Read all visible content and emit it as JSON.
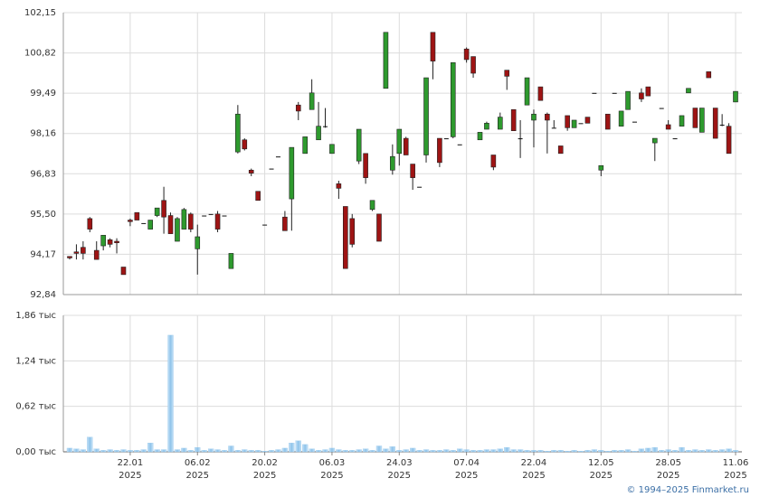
{
  "chart_data": {
    "type": "candlestick",
    "up_color": "#2e9a2e",
    "down_color": "#9e1414",
    "flat_color": "#111111",
    "grid": true,
    "categories": [
      null,
      null,
      null,
      null,
      null,
      null,
      null,
      null,
      null,
      "22.01\n2025",
      null,
      null,
      null,
      null,
      null,
      null,
      null,
      null,
      null,
      "06.02\n2025",
      null,
      null,
      null,
      null,
      null,
      null,
      null,
      null,
      null,
      "20.02\n2025",
      null,
      null,
      null,
      null,
      null,
      null,
      null,
      null,
      null,
      "06.03\n2025",
      null,
      null,
      null,
      null,
      null,
      null,
      null,
      null,
      null,
      "24.03\n2025",
      null,
      null,
      null,
      null,
      null,
      null,
      null,
      null,
      null,
      "07.04\n2025",
      null,
      null,
      null,
      null,
      null,
      null,
      null,
      null,
      null,
      "22.04\n2025",
      null,
      null,
      null,
      null,
      null,
      null,
      null,
      null,
      null,
      "12.05\n2025",
      null,
      null,
      null,
      null,
      null,
      null,
      null,
      null,
      null,
      "28.05\n2025",
      null,
      null,
      null,
      null,
      null,
      null,
      null,
      null,
      null,
      "11.06\n2025"
    ],
    "open": [
      94.1,
      94.25,
      94.4,
      95.35,
      94.3,
      94.45,
      94.65,
      94.6,
      93.75,
      95.3,
      95.55,
      95.2,
      95.0,
      95.45,
      95.95,
      95.45,
      94.6,
      95.0,
      95.5,
      94.35,
      95.45,
      95.5,
      95.5,
      95.45,
      93.7,
      97.55,
      97.95,
      96.95,
      96.25,
      95.15,
      97.0,
      97.4,
      95.4,
      96.0,
      99.1,
      97.5,
      98.95,
      97.95,
      98.4,
      97.5,
      96.5,
      95.75,
      95.35,
      97.25,
      97.5,
      95.65,
      95.5,
      99.65,
      96.95,
      97.5,
      98.0,
      97.15,
      96.4,
      97.45,
      101.5,
      98.0,
      98.0,
      98.05,
      97.8,
      100.95,
      100.7,
      97.95,
      98.3,
      97.45,
      98.3,
      100.25,
      98.95,
      98.0,
      99.1,
      98.6,
      99.7,
      98.8,
      98.35,
      97.75,
      98.75,
      98.35,
      98.5,
      98.7,
      99.5,
      96.95,
      98.8,
      99.5,
      98.4,
      98.95,
      98.55,
      99.5,
      99.7,
      97.85,
      99.0,
      98.45,
      98.0,
      98.4,
      99.5,
      99.0,
      98.2,
      100.2,
      99.0,
      98.45,
      98.4,
      99.2
    ],
    "high": [
      94.1,
      94.5,
      94.6,
      95.4,
      94.6,
      94.8,
      94.7,
      94.7,
      93.75,
      95.35,
      95.55,
      95.2,
      95.3,
      95.7,
      96.4,
      95.55,
      95.4,
      95.7,
      95.55,
      95.15,
      95.45,
      95.5,
      95.6,
      95.45,
      94.2,
      99.1,
      98.0,
      97.0,
      96.25,
      95.15,
      97.0,
      97.4,
      95.6,
      97.7,
      99.2,
      98.05,
      99.95,
      99.2,
      99.0,
      97.8,
      96.6,
      95.75,
      95.5,
      98.3,
      97.5,
      95.95,
      95.5,
      101.5,
      97.8,
      98.3,
      98.05,
      97.15,
      96.4,
      100.0,
      101.5,
      98.0,
      98.0,
      100.5,
      97.8,
      101.0,
      100.7,
      98.2,
      98.55,
      97.45,
      98.85,
      100.25,
      98.95,
      98.6,
      100.0,
      98.95,
      99.7,
      98.85,
      98.6,
      97.75,
      98.75,
      98.6,
      98.5,
      98.7,
      99.5,
      97.1,
      98.8,
      99.5,
      98.9,
      99.55,
      98.55,
      99.65,
      99.7,
      98.0,
      99.0,
      98.6,
      98.0,
      98.75,
      99.65,
      99.0,
      99.0,
      100.2,
      99.0,
      98.8,
      98.5,
      99.55
    ],
    "low": [
      94.0,
      94.0,
      94.0,
      94.9,
      94.0,
      94.3,
      94.4,
      94.2,
      93.5,
      95.1,
      95.3,
      95.2,
      95.0,
      95.4,
      94.85,
      94.85,
      94.6,
      95.0,
      94.9,
      93.5,
      95.45,
      95.5,
      94.9,
      95.45,
      93.7,
      97.5,
      97.6,
      96.75,
      95.95,
      95.15,
      97.0,
      97.4,
      94.95,
      94.95,
      98.6,
      97.5,
      98.95,
      97.95,
      98.35,
      97.5,
      96.0,
      93.7,
      94.4,
      97.15,
      96.5,
      95.6,
      94.6,
      99.65,
      96.8,
      97.1,
      97.45,
      96.3,
      96.4,
      97.2,
      99.95,
      97.05,
      98.0,
      98.0,
      97.8,
      100.5,
      100.0,
      97.95,
      98.3,
      96.95,
      98.3,
      99.6,
      98.25,
      97.35,
      99.1,
      97.7,
      99.25,
      97.5,
      98.35,
      97.5,
      98.25,
      98.35,
      98.5,
      98.5,
      99.5,
      96.75,
      98.3,
      99.5,
      98.4,
      98.95,
      98.55,
      99.2,
      99.4,
      97.25,
      99.0,
      98.3,
      98.0,
      98.4,
      99.5,
      98.35,
      98.2,
      100.0,
      98.0,
      98.4,
      97.5,
      99.2
    ],
    "close": [
      94.05,
      94.2,
      94.2,
      95.0,
      94.0,
      94.8,
      94.5,
      94.55,
      93.5,
      95.25,
      95.3,
      95.2,
      95.3,
      95.7,
      95.4,
      94.85,
      95.35,
      95.65,
      95.0,
      94.75,
      95.45,
      95.5,
      95.0,
      95.45,
      94.2,
      98.8,
      97.65,
      96.85,
      95.95,
      95.15,
      97.0,
      97.4,
      94.95,
      97.7,
      98.9,
      98.05,
      99.5,
      98.4,
      98.4,
      97.8,
      96.35,
      93.7,
      94.5,
      98.3,
      96.7,
      95.95,
      94.6,
      101.5,
      97.4,
      98.3,
      97.45,
      96.7,
      96.4,
      100.0,
      100.55,
      97.2,
      98.0,
      100.5,
      97.8,
      100.6,
      100.15,
      98.2,
      98.5,
      97.05,
      98.7,
      100.05,
      98.25,
      98.0,
      100.0,
      98.8,
      99.25,
      98.6,
      98.35,
      97.5,
      98.35,
      98.6,
      98.5,
      98.5,
      99.5,
      97.1,
      98.3,
      99.5,
      98.9,
      99.55,
      98.55,
      99.3,
      99.4,
      98.0,
      99.0,
      98.3,
      98.0,
      98.75,
      99.65,
      98.35,
      99.0,
      100.0,
      98.0,
      98.45,
      97.5,
      99.55
    ],
    "ylim": [
      92.84,
      102.15
    ],
    "yticks": [
      {
        "value": 92.84,
        "label": "92,84"
      },
      {
        "value": 94.17,
        "label": "94,17"
      },
      {
        "value": 95.5,
        "label": "95,50"
      },
      {
        "value": 96.83,
        "label": "96,83"
      },
      {
        "value": 98.16,
        "label": "98,16"
      },
      {
        "value": 99.49,
        "label": "99,49"
      },
      {
        "value": 100.82,
        "label": "100,82"
      },
      {
        "value": 102.15,
        "label": "102,15"
      }
    ],
    "volume": {
      "color": "#8ec3ea",
      "values": [
        0.05,
        0.04,
        0.03,
        0.2,
        0.04,
        0.02,
        0.03,
        0.02,
        0.03,
        0.02,
        0.02,
        0.03,
        0.12,
        0.03,
        0.03,
        1.59,
        0.03,
        0.05,
        0.02,
        0.06,
        0.02,
        0.04,
        0.03,
        0.02,
        0.08,
        0.02,
        0.03,
        0.02,
        0.02,
        0.01,
        0.02,
        0.03,
        0.05,
        0.12,
        0.15,
        0.1,
        0.04,
        0.02,
        0.03,
        0.05,
        0.03,
        0.02,
        0.02,
        0.03,
        0.04,
        0.02,
        0.08,
        0.04,
        0.07,
        0.02,
        0.03,
        0.05,
        0.02,
        0.03,
        0.02,
        0.02,
        0.03,
        0.02,
        0.04,
        0.03,
        0.02,
        0.02,
        0.03,
        0.03,
        0.04,
        0.06,
        0.03,
        0.03,
        0.02,
        0.02,
        0.02,
        0.01,
        0.02,
        0.02,
        0.01,
        0.02,
        0.01,
        0.02,
        0.03,
        0.02,
        0.01,
        0.02,
        0.02,
        0.03,
        0.01,
        0.04,
        0.05,
        0.06,
        0.02,
        0.03,
        0.02,
        0.06,
        0.02,
        0.03,
        0.02,
        0.03,
        0.02,
        0.03,
        0.04,
        0.02
      ],
      "ylim": [
        0,
        1.86
      ],
      "yticks": [
        {
          "value": 0,
          "label": "0,00 тыс"
        },
        {
          "value": 0.62,
          "label": "0,62 тыс"
        },
        {
          "value": 1.24,
          "label": "1,24 тыс"
        },
        {
          "value": 1.86,
          "label": "1,86 тыс"
        }
      ]
    },
    "source": "© 1994–2025 Finmarket.ru"
  }
}
